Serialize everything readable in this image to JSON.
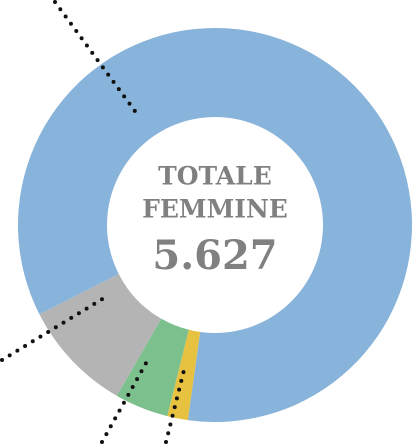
{
  "chart_data": {
    "type": "donut",
    "values": [
      84.7,
      1.7,
      4.4,
      9.2
    ],
    "colors": [
      "#88b3da",
      "#e7c241",
      "#7cc08e",
      "#b4b4b4"
    ],
    "center_title": [
      "TOTALE",
      "FEMMINE"
    ],
    "center_value": "5.627"
  }
}
